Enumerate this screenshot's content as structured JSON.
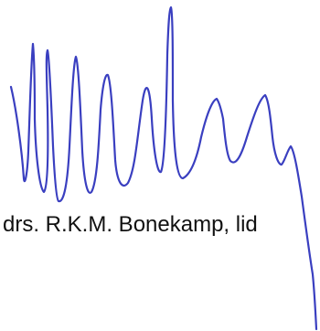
{
  "signatory": {
    "name_line": "drs. R.K.M. Bonekamp, lid"
  },
  "signature": {
    "ink_color": "#3a3fc0"
  }
}
